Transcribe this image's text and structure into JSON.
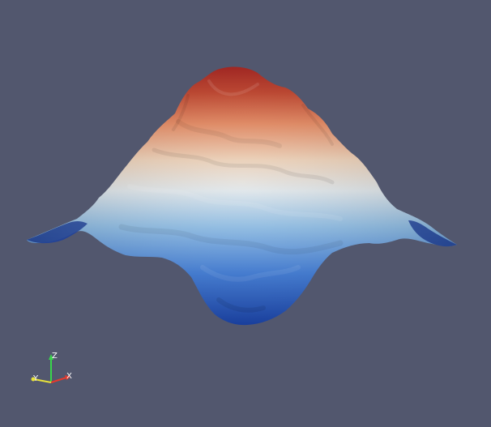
{
  "viewport": {
    "background_color": "#52576e"
  },
  "surface": {
    "colormap": [
      "#1a47b8",
      "#3f7fe0",
      "#8fbfe8",
      "#dfe6ea",
      "#edd0b6",
      "#e9895f",
      "#c9432a",
      "#b2221d"
    ]
  },
  "orientation_axes": {
    "x_label": "X",
    "y_label": "Y",
    "z_label": "Z",
    "x_color": "#e8392b",
    "y_color": "#e8e23a",
    "z_color": "#38d64a"
  }
}
